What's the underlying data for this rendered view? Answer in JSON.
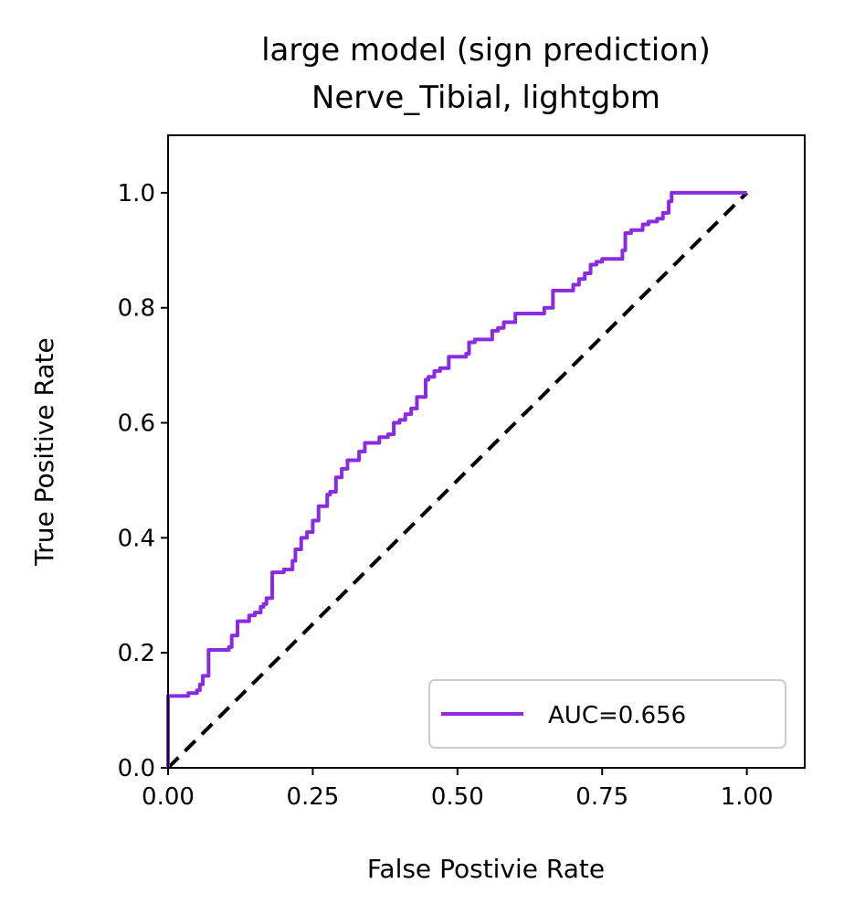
{
  "chart_data": {
    "type": "line",
    "title": "large model (sign prediction)",
    "subtitle": "Nerve_Tibial, lightgbm",
    "xlabel": "False Postivie Rate",
    "ylabel": "True Positive Rate",
    "xlim": [
      0.0,
      1.1
    ],
    "ylim": [
      0.0,
      1.1
    ],
    "xticks": [
      "0.00",
      "0.25",
      "0.50",
      "0.75",
      "1.00"
    ],
    "yticks": [
      "0.0",
      "0.2",
      "0.4",
      "0.6",
      "0.8",
      "1.0"
    ],
    "grid": false,
    "legend_position": "lower-right",
    "series": [
      {
        "name": "AUC=0.656",
        "color": "#8a2be2",
        "style": "solid",
        "x": [
          0.0,
          0.0,
          0.035,
          0.035,
          0.05,
          0.05,
          0.055,
          0.055,
          0.06,
          0.06,
          0.07,
          0.07,
          0.105,
          0.105,
          0.11,
          0.11,
          0.12,
          0.12,
          0.14,
          0.14,
          0.15,
          0.15,
          0.16,
          0.16,
          0.165,
          0.165,
          0.17,
          0.17,
          0.18,
          0.18,
          0.2,
          0.2,
          0.215,
          0.215,
          0.22,
          0.22,
          0.23,
          0.23,
          0.24,
          0.24,
          0.25,
          0.25,
          0.26,
          0.26,
          0.275,
          0.275,
          0.28,
          0.28,
          0.29,
          0.29,
          0.3,
          0.3,
          0.31,
          0.31,
          0.33,
          0.33,
          0.34,
          0.34,
          0.365,
          0.365,
          0.38,
          0.38,
          0.39,
          0.39,
          0.4,
          0.4,
          0.41,
          0.41,
          0.42,
          0.42,
          0.43,
          0.43,
          0.445,
          0.445,
          0.45,
          0.45,
          0.46,
          0.46,
          0.47,
          0.47,
          0.485,
          0.485,
          0.515,
          0.515,
          0.52,
          0.52,
          0.53,
          0.53,
          0.56,
          0.56,
          0.57,
          0.57,
          0.58,
          0.58,
          0.6,
          0.6,
          0.65,
          0.65,
          0.665,
          0.665,
          0.7,
          0.7,
          0.71,
          0.71,
          0.72,
          0.72,
          0.73,
          0.73,
          0.74,
          0.74,
          0.75,
          0.75,
          0.785,
          0.785,
          0.79,
          0.79,
          0.8,
          0.8,
          0.82,
          0.82,
          0.83,
          0.83,
          0.845,
          0.845,
          0.855,
          0.855,
          0.865,
          0.865,
          0.87,
          0.87,
          1.0
        ],
        "y": [
          0.0,
          0.125,
          0.125,
          0.13,
          0.13,
          0.135,
          0.135,
          0.145,
          0.145,
          0.16,
          0.16,
          0.205,
          0.205,
          0.21,
          0.21,
          0.23,
          0.23,
          0.255,
          0.255,
          0.265,
          0.265,
          0.27,
          0.27,
          0.28,
          0.28,
          0.285,
          0.285,
          0.295,
          0.295,
          0.34,
          0.34,
          0.345,
          0.345,
          0.36,
          0.36,
          0.38,
          0.38,
          0.4,
          0.4,
          0.41,
          0.41,
          0.43,
          0.43,
          0.455,
          0.455,
          0.475,
          0.475,
          0.48,
          0.48,
          0.505,
          0.505,
          0.52,
          0.52,
          0.535,
          0.535,
          0.55,
          0.55,
          0.565,
          0.565,
          0.575,
          0.575,
          0.58,
          0.58,
          0.6,
          0.6,
          0.605,
          0.605,
          0.615,
          0.615,
          0.625,
          0.625,
          0.645,
          0.645,
          0.675,
          0.675,
          0.68,
          0.68,
          0.69,
          0.69,
          0.695,
          0.695,
          0.715,
          0.715,
          0.72,
          0.72,
          0.74,
          0.74,
          0.745,
          0.745,
          0.76,
          0.76,
          0.765,
          0.765,
          0.775,
          0.775,
          0.79,
          0.79,
          0.8,
          0.8,
          0.83,
          0.83,
          0.84,
          0.84,
          0.85,
          0.85,
          0.86,
          0.86,
          0.875,
          0.875,
          0.88,
          0.88,
          0.885,
          0.885,
          0.9,
          0.9,
          0.93,
          0.93,
          0.935,
          0.935,
          0.945,
          0.945,
          0.95,
          0.95,
          0.955,
          0.955,
          0.965,
          0.965,
          0.985,
          0.985,
          1.0,
          1.0
        ]
      },
      {
        "name": "",
        "color": "#000000",
        "style": "dashed",
        "x": [
          0.0,
          1.0
        ],
        "y": [
          0.0,
          1.0
        ]
      }
    ]
  }
}
